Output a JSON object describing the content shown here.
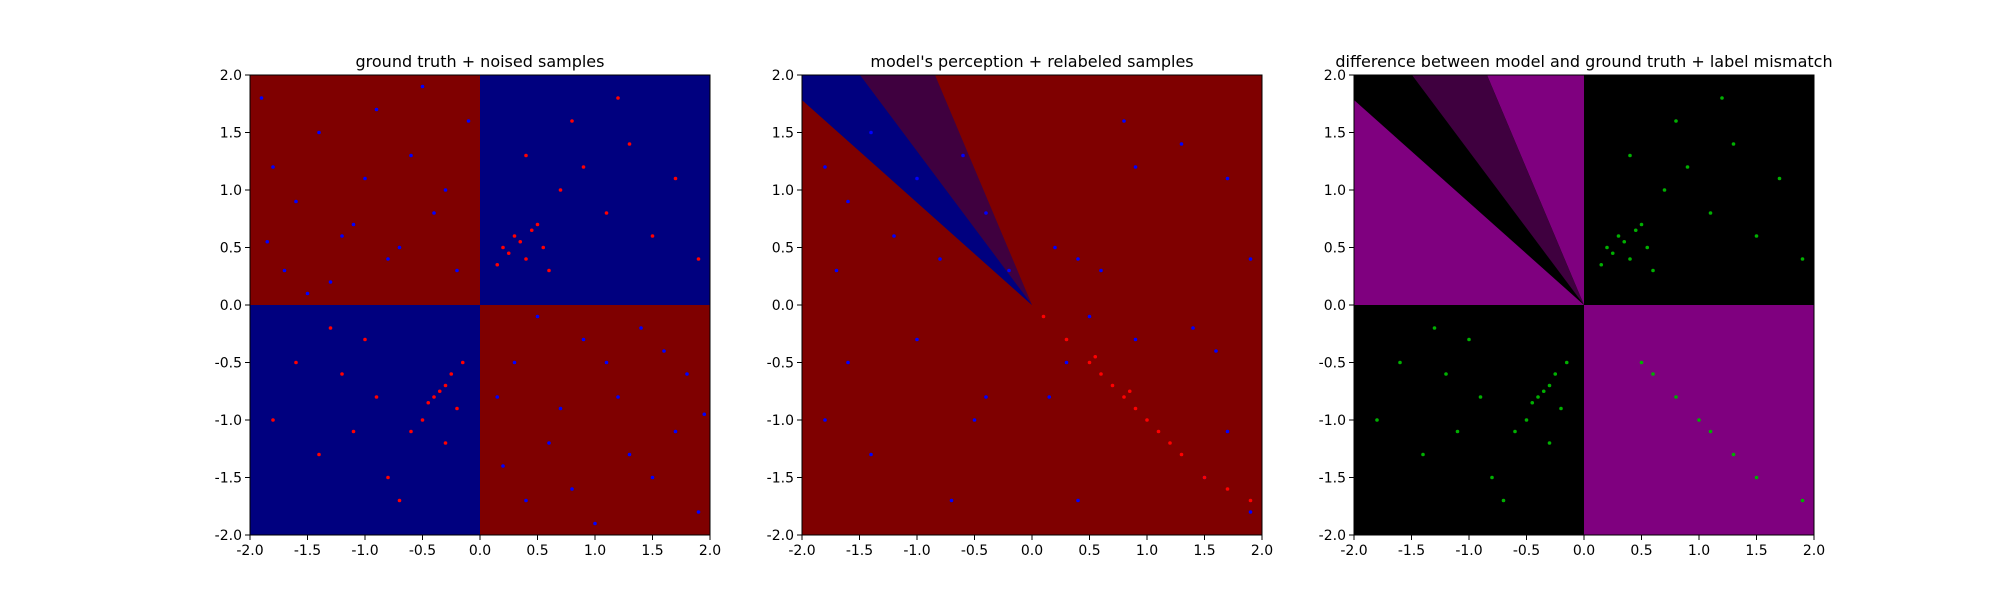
{
  "chart_data": [
    {
      "type": "scatter",
      "title": "ground truth + noised samples",
      "xlim": [
        -2.0,
        2.0
      ],
      "ylim": [
        -2.0,
        2.0
      ],
      "x_ticks": [
        "-2.0",
        "-1.5",
        "-1.0",
        "-0.5",
        "0.0",
        "0.5",
        "1.0",
        "1.5",
        "2.0"
      ],
      "y_ticks": [
        "-2.0",
        "-1.5",
        "-1.0",
        "-0.5",
        "0.0",
        "0.5",
        "1.0",
        "1.5",
        "2.0"
      ],
      "background_regions": "quadrants: x*y > 0 blue (#00007f), x*y < 0 red (#7f0000)",
      "series": [
        {
          "color": "#0000ff",
          "values": [
            [
              -1.8,
              1.2
            ],
            [
              -1.6,
              0.9
            ],
            [
              -1.4,
              1.5
            ],
            [
              -1.2,
              0.6
            ],
            [
              -1.0,
              1.1
            ],
            [
              -0.8,
              0.4
            ],
            [
              -0.6,
              1.3
            ],
            [
              -0.4,
              0.8
            ],
            [
              -0.2,
              0.3
            ],
            [
              -1.7,
              0.3
            ],
            [
              -1.3,
              0.2
            ],
            [
              -0.9,
              1.7
            ],
            [
              -0.5,
              1.9
            ],
            [
              -1.9,
              1.8
            ],
            [
              -1.1,
              0.7
            ],
            [
              -0.7,
              0.5
            ],
            [
              -0.3,
              1.0
            ],
            [
              -1.5,
              0.1
            ],
            [
              -0.1,
              1.6
            ],
            [
              -1.85,
              0.55
            ],
            [
              0.3,
              -0.5
            ],
            [
              0.6,
              -1.2
            ],
            [
              0.9,
              -0.3
            ],
            [
              1.2,
              -0.8
            ],
            [
              1.5,
              -1.5
            ],
            [
              1.8,
              -0.6
            ],
            [
              0.4,
              -1.7
            ],
            [
              1.0,
              -1.9
            ],
            [
              1.4,
              -0.2
            ],
            [
              0.7,
              -0.9
            ],
            [
              1.7,
              -1.1
            ],
            [
              0.2,
              -1.4
            ],
            [
              1.1,
              -0.5
            ],
            [
              1.9,
              -1.8
            ],
            [
              0.5,
              -0.1
            ],
            [
              1.3,
              -1.3
            ],
            [
              0.8,
              -1.6
            ],
            [
              1.6,
              -0.4
            ],
            [
              0.15,
              -0.8
            ],
            [
              1.95,
              -0.95
            ]
          ]
        },
        {
          "color": "#ff0000",
          "values": [
            [
              0.2,
              0.5
            ],
            [
              0.3,
              0.6
            ],
            [
              0.4,
              0.4
            ],
            [
              0.5,
              0.7
            ],
            [
              0.6,
              0.3
            ],
            [
              0.35,
              0.55
            ],
            [
              0.25,
              0.45
            ],
            [
              0.45,
              0.65
            ],
            [
              0.55,
              0.5
            ],
            [
              0.15,
              0.35
            ],
            [
              0.7,
              1.0
            ],
            [
              0.9,
              1.2
            ],
            [
              1.1,
              0.8
            ],
            [
              1.3,
              1.4
            ],
            [
              1.5,
              0.6
            ],
            [
              1.7,
              1.1
            ],
            [
              1.9,
              0.4
            ],
            [
              0.8,
              1.6
            ],
            [
              1.2,
              1.8
            ],
            [
              0.4,
              1.3
            ],
            [
              -0.3,
              -0.7
            ],
            [
              -0.4,
              -0.8
            ],
            [
              -0.2,
              -0.9
            ],
            [
              -0.5,
              -1.0
            ],
            [
              -0.35,
              -0.75
            ],
            [
              -0.25,
              -0.6
            ],
            [
              -0.45,
              -0.85
            ],
            [
              -0.15,
              -0.5
            ],
            [
              -0.6,
              -1.1
            ],
            [
              -0.3,
              -1.2
            ],
            [
              -1.0,
              -0.3
            ],
            [
              -1.2,
              -0.6
            ],
            [
              -0.8,
              -1.5
            ],
            [
              -1.4,
              -1.3
            ],
            [
              -1.6,
              -0.5
            ],
            [
              -0.9,
              -0.8
            ],
            [
              -1.1,
              -1.1
            ],
            [
              -0.7,
              -1.7
            ],
            [
              -1.8,
              -1.0
            ],
            [
              -1.3,
              -0.2
            ]
          ]
        }
      ]
    },
    {
      "type": "scatter",
      "title": "model's perception + relabeled samples",
      "xlim": [
        -2.0,
        2.0
      ],
      "ylim": [
        -2.0,
        2.0
      ],
      "x_ticks": [
        "-2.0",
        "-1.5",
        "-1.0",
        "-0.5",
        "0.0",
        "0.5",
        "1.0",
        "1.5",
        "2.0"
      ],
      "y_ticks": [
        "-2.0",
        "-1.5",
        "-1.0",
        "-0.5",
        "0.0",
        "0.5",
        "1.0",
        "1.5",
        "2.0"
      ],
      "background_regions": "red (#7f0000) everywhere except a blue wedge (#00007f) and a dark-violet wedge (#3f003f) from origin into upper-left",
      "series": [
        {
          "color": "#0000ff",
          "values": [
            [
              -1.8,
              1.2
            ],
            [
              -1.6,
              0.9
            ],
            [
              -1.4,
              1.5
            ],
            [
              -1.2,
              0.6
            ],
            [
              -1.0,
              1.1
            ],
            [
              -0.8,
              0.4
            ],
            [
              -0.6,
              1.3
            ],
            [
              -0.4,
              0.8
            ],
            [
              -0.2,
              0.3
            ],
            [
              -1.7,
              0.3
            ],
            [
              0.2,
              0.5
            ],
            [
              0.4,
              0.4
            ],
            [
              0.6,
              0.3
            ],
            [
              0.9,
              1.2
            ],
            [
              1.3,
              1.4
            ],
            [
              1.7,
              1.1
            ],
            [
              0.8,
              1.6
            ],
            [
              1.9,
              0.4
            ],
            [
              -0.4,
              -0.8
            ],
            [
              -0.5,
              -1.0
            ],
            [
              -1.0,
              -0.3
            ],
            [
              -1.4,
              -1.3
            ],
            [
              -1.6,
              -0.5
            ],
            [
              -0.7,
              -1.7
            ],
            [
              -1.8,
              -1.0
            ],
            [
              0.3,
              -0.5
            ],
            [
              0.9,
              -0.3
            ],
            [
              1.5,
              -1.5
            ],
            [
              0.4,
              -1.7
            ],
            [
              1.4,
              -0.2
            ],
            [
              1.7,
              -1.1
            ],
            [
              1.9,
              -1.8
            ],
            [
              0.5,
              -0.1
            ],
            [
              1.6,
              -0.4
            ],
            [
              0.15,
              -0.8
            ]
          ]
        },
        {
          "color": "#ff0000",
          "values": [
            [
              0.1,
              -0.1
            ],
            [
              0.3,
              -0.3
            ],
            [
              0.5,
              -0.5
            ],
            [
              0.6,
              -0.6
            ],
            [
              0.7,
              -0.7
            ],
            [
              0.8,
              -0.8
            ],
            [
              0.9,
              -0.9
            ],
            [
              1.0,
              -1.0
            ],
            [
              1.1,
              -1.1
            ],
            [
              1.2,
              -1.2
            ],
            [
              1.3,
              -1.3
            ],
            [
              1.5,
              -1.5
            ],
            [
              1.7,
              -1.6
            ],
            [
              1.9,
              -1.7
            ],
            [
              0.55,
              -0.45
            ],
            [
              0.85,
              -0.75
            ]
          ]
        }
      ]
    },
    {
      "type": "scatter",
      "title": "difference between model and ground truth + label mismatch",
      "xlim": [
        -2.0,
        2.0
      ],
      "ylim": [
        -2.0,
        2.0
      ],
      "x_ticks": [
        "-2.0",
        "-1.5",
        "-1.0",
        "-0.5",
        "0.0",
        "0.5",
        "1.0",
        "1.5",
        "2.0"
      ],
      "y_ticks": [
        "-2.0",
        "-1.5",
        "-1.0",
        "-0.5",
        "0.0",
        "0.5",
        "1.0",
        "1.5",
        "2.0"
      ],
      "background_regions": "purple (#7f007f) where model and ground truth differ, black (#000000) where they agree, dark-violet (#3f003f) uncertain wedge",
      "series": [
        {
          "color": "#00b000",
          "values": [
            [
              0.2,
              0.5
            ],
            [
              0.3,
              0.6
            ],
            [
              0.4,
              0.4
            ],
            [
              0.5,
              0.7
            ],
            [
              0.6,
              0.3
            ],
            [
              0.35,
              0.55
            ],
            [
              0.25,
              0.45
            ],
            [
              0.45,
              0.65
            ],
            [
              0.55,
              0.5
            ],
            [
              0.15,
              0.35
            ],
            [
              0.7,
              1.0
            ],
            [
              0.9,
              1.2
            ],
            [
              1.1,
              0.8
            ],
            [
              1.3,
              1.4
            ],
            [
              1.5,
              0.6
            ],
            [
              1.7,
              1.1
            ],
            [
              1.9,
              0.4
            ],
            [
              0.8,
              1.6
            ],
            [
              1.2,
              1.8
            ],
            [
              0.4,
              1.3
            ],
            [
              -0.3,
              -0.7
            ],
            [
              -0.4,
              -0.8
            ],
            [
              -0.2,
              -0.9
            ],
            [
              -0.5,
              -1.0
            ],
            [
              -0.35,
              -0.75
            ],
            [
              -0.25,
              -0.6
            ],
            [
              -0.45,
              -0.85
            ],
            [
              -0.15,
              -0.5
            ],
            [
              -0.6,
              -1.1
            ],
            [
              -0.3,
              -1.2
            ],
            [
              -1.0,
              -0.3
            ],
            [
              -1.2,
              -0.6
            ],
            [
              -0.8,
              -1.5
            ],
            [
              -1.4,
              -1.3
            ],
            [
              -1.6,
              -0.5
            ],
            [
              -0.9,
              -0.8
            ],
            [
              -1.1,
              -1.1
            ],
            [
              -0.7,
              -1.7
            ],
            [
              -1.8,
              -1.0
            ],
            [
              -1.3,
              -0.2
            ],
            [
              0.5,
              -0.5
            ],
            [
              0.6,
              -0.6
            ],
            [
              0.8,
              -0.8
            ],
            [
              1.0,
              -1.0
            ],
            [
              1.1,
              -1.1
            ],
            [
              1.3,
              -1.3
            ],
            [
              1.5,
              -1.5
            ],
            [
              1.9,
              -1.7
            ]
          ]
        }
      ]
    }
  ]
}
